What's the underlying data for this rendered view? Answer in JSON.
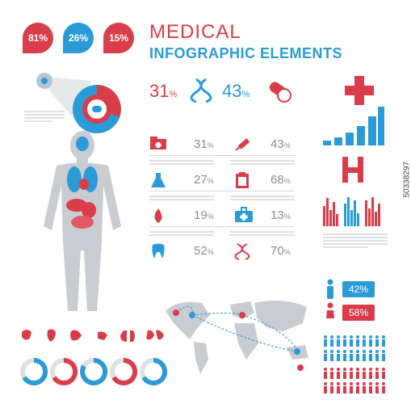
{
  "header": {
    "title_line1": "MEDICAL",
    "title_line2": "INFOGRAPHIC ELEMENTS"
  },
  "top_drops": [
    {
      "value": "81%",
      "color": "#d93d4a"
    },
    {
      "value": "26%",
      "color": "#2b9bd8"
    },
    {
      "value": "15%",
      "color": "#d93d4a"
    }
  ],
  "big_stats": [
    {
      "value": "31",
      "unit": "%",
      "color": "#d93d4a",
      "icon": "dna-icon"
    },
    {
      "value": "43",
      "unit": "%",
      "color": "#2b9bd8",
      "icon": "pill-icon"
    }
  ],
  "stats_grid": [
    {
      "icon": "folder-medical-icon",
      "value": "31",
      "unit": "%"
    },
    {
      "icon": "syringe-icon",
      "value": "43",
      "unit": "%"
    },
    {
      "icon": "flask-icon",
      "value": "27",
      "unit": "%"
    },
    {
      "icon": "clipboard-icon",
      "value": "68",
      "unit": "%"
    },
    {
      "icon": "blood-drop-icon",
      "value": "19",
      "unit": "%"
    },
    {
      "icon": "first-aid-kit-icon",
      "value": "13",
      "unit": "%"
    },
    {
      "icon": "tooth-icon",
      "value": "52",
      "unit": "%"
    },
    {
      "icon": "dna-icon",
      "value": "70",
      "unit": "%"
    }
  ],
  "gender": {
    "male_pct": "42%",
    "female_pct": "58%",
    "male_color": "#2b9bd8",
    "female_color": "#d93d4a"
  },
  "watermark": "50338297",
  "colors": {
    "red": "#d93d4a",
    "blue": "#2b9bd8",
    "gray": "#c9ccd0"
  }
}
